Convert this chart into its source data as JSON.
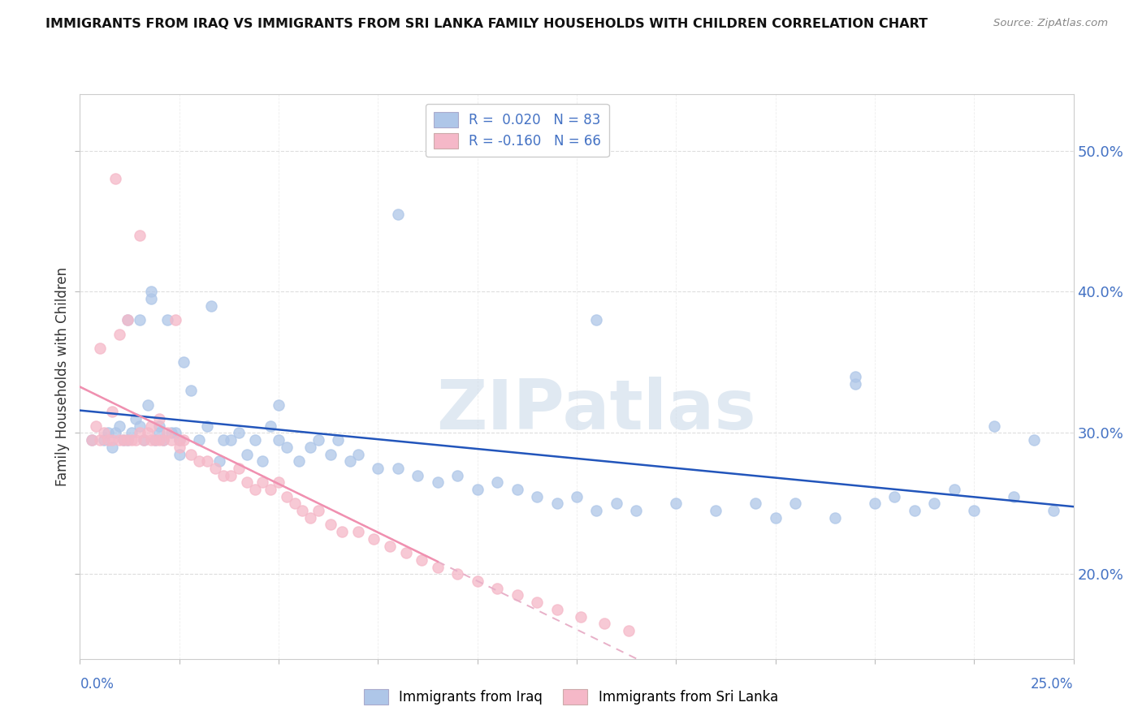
{
  "title": "IMMIGRANTS FROM IRAQ VS IMMIGRANTS FROM SRI LANKA FAMILY HOUSEHOLDS WITH CHILDREN CORRELATION CHART",
  "source": "Source: ZipAtlas.com",
  "ylabel": "Family Households with Children",
  "ytick_values": [
    0.2,
    0.3,
    0.4,
    0.5
  ],
  "xlim": [
    0.0,
    0.25
  ],
  "ylim": [
    0.14,
    0.54
  ],
  "legend_iraq": "R =  0.020   N = 83",
  "legend_srilanka": "R = -0.160   N = 66",
  "iraq_color": "#aec6e8",
  "srilanka_color": "#f5b8c8",
  "iraq_line_color": "#2255bb",
  "srilanka_line_color": "#f090b0",
  "srilanka_dash_color": "#e8b0c8",
  "watermark": "ZIPatlas",
  "iraq_scatter_x": [
    0.003,
    0.006,
    0.007,
    0.008,
    0.009,
    0.01,
    0.011,
    0.012,
    0.012,
    0.013,
    0.014,
    0.015,
    0.015,
    0.016,
    0.017,
    0.018,
    0.018,
    0.019,
    0.02,
    0.02,
    0.021,
    0.022,
    0.023,
    0.024,
    0.025,
    0.026,
    0.028,
    0.03,
    0.032,
    0.033,
    0.035,
    0.036,
    0.038,
    0.04,
    0.042,
    0.044,
    0.046,
    0.048,
    0.05,
    0.052,
    0.055,
    0.058,
    0.06,
    0.063,
    0.065,
    0.068,
    0.07,
    0.075,
    0.08,
    0.085,
    0.09,
    0.095,
    0.1,
    0.105,
    0.11,
    0.115,
    0.12,
    0.125,
    0.13,
    0.135,
    0.14,
    0.15,
    0.16,
    0.17,
    0.175,
    0.18,
    0.19,
    0.195,
    0.2,
    0.205,
    0.21,
    0.215,
    0.22,
    0.225,
    0.23,
    0.235,
    0.24,
    0.245,
    0.195,
    0.13,
    0.08,
    0.05,
    0.025
  ],
  "iraq_scatter_y": [
    0.295,
    0.295,
    0.3,
    0.29,
    0.3,
    0.305,
    0.295,
    0.295,
    0.38,
    0.3,
    0.31,
    0.38,
    0.305,
    0.295,
    0.32,
    0.4,
    0.395,
    0.295,
    0.305,
    0.3,
    0.295,
    0.38,
    0.3,
    0.3,
    0.295,
    0.35,
    0.33,
    0.295,
    0.305,
    0.39,
    0.28,
    0.295,
    0.295,
    0.3,
    0.285,
    0.295,
    0.28,
    0.305,
    0.295,
    0.29,
    0.28,
    0.29,
    0.295,
    0.285,
    0.295,
    0.28,
    0.285,
    0.275,
    0.275,
    0.27,
    0.265,
    0.27,
    0.26,
    0.265,
    0.26,
    0.255,
    0.25,
    0.255,
    0.245,
    0.25,
    0.245,
    0.25,
    0.245,
    0.25,
    0.24,
    0.25,
    0.24,
    0.335,
    0.25,
    0.255,
    0.245,
    0.25,
    0.26,
    0.245,
    0.305,
    0.255,
    0.295,
    0.245,
    0.34,
    0.38,
    0.455,
    0.32,
    0.285
  ],
  "srilanka_scatter_x": [
    0.003,
    0.004,
    0.005,
    0.005,
    0.006,
    0.007,
    0.008,
    0.008,
    0.009,
    0.01,
    0.01,
    0.011,
    0.012,
    0.012,
    0.013,
    0.014,
    0.015,
    0.015,
    0.016,
    0.017,
    0.018,
    0.018,
    0.019,
    0.02,
    0.02,
    0.021,
    0.022,
    0.023,
    0.024,
    0.025,
    0.025,
    0.026,
    0.028,
    0.03,
    0.032,
    0.034,
    0.036,
    0.038,
    0.04,
    0.042,
    0.044,
    0.046,
    0.048,
    0.05,
    0.052,
    0.054,
    0.056,
    0.058,
    0.06,
    0.063,
    0.066,
    0.07,
    0.074,
    0.078,
    0.082,
    0.086,
    0.09,
    0.095,
    0.1,
    0.105,
    0.11,
    0.115,
    0.12,
    0.126,
    0.132,
    0.138
  ],
  "srilanka_scatter_y": [
    0.295,
    0.305,
    0.36,
    0.295,
    0.3,
    0.295,
    0.315,
    0.295,
    0.48,
    0.295,
    0.37,
    0.295,
    0.295,
    0.38,
    0.295,
    0.295,
    0.3,
    0.44,
    0.295,
    0.3,
    0.295,
    0.305,
    0.295,
    0.295,
    0.31,
    0.295,
    0.3,
    0.295,
    0.38,
    0.29,
    0.295,
    0.295,
    0.285,
    0.28,
    0.28,
    0.275,
    0.27,
    0.27,
    0.275,
    0.265,
    0.26,
    0.265,
    0.26,
    0.265,
    0.255,
    0.25,
    0.245,
    0.24,
    0.245,
    0.235,
    0.23,
    0.23,
    0.225,
    0.22,
    0.215,
    0.21,
    0.205,
    0.2,
    0.195,
    0.19,
    0.185,
    0.18,
    0.175,
    0.17,
    0.165,
    0.16
  ]
}
